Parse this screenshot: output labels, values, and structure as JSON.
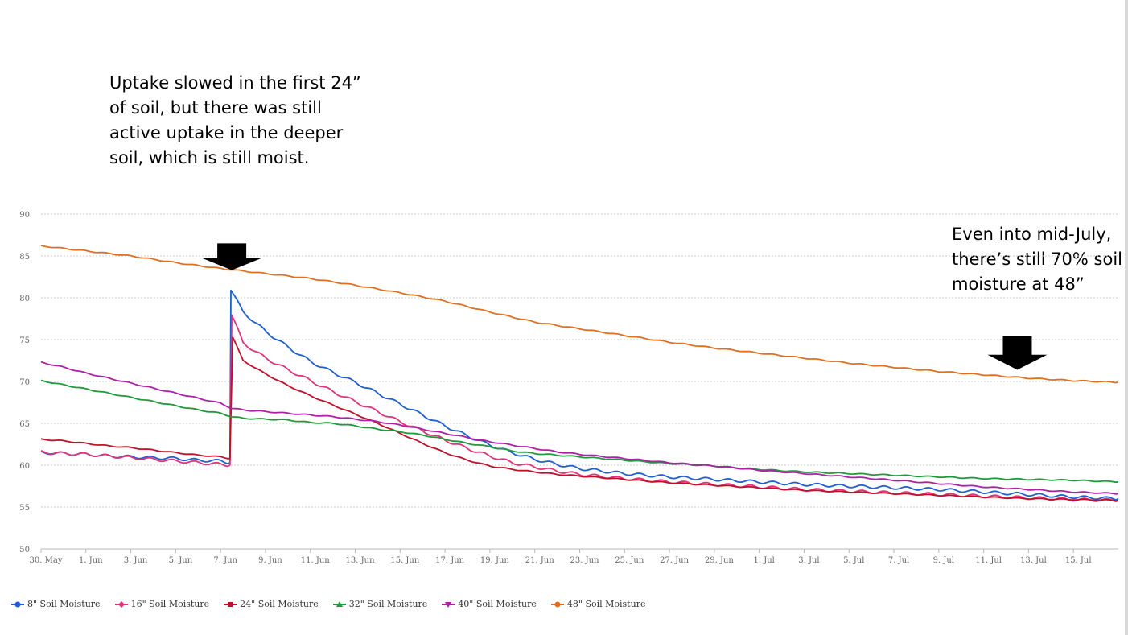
{
  "annotations": {
    "left": [
      "Uptake slowed in the first 24”",
      "of soil, but there was still",
      "active uptake in the deeper",
      "soil, which is still moist."
    ],
    "right": [
      "Even into mid-July,",
      "there’s still 70% soil",
      "moisture at 48”"
    ]
  },
  "chart_data": {
    "type": "line",
    "title": "",
    "xlabel": "",
    "ylabel": "",
    "xlim": [
      "2019-05-30",
      "2019-07-17"
    ],
    "ylim": [
      50,
      90
    ],
    "y_ticks": [
      50,
      55,
      60,
      65,
      70,
      75,
      80,
      85,
      90
    ],
    "x_tick_labels": [
      "30. May",
      "1. Jun",
      "3. Jun",
      "5. Jun",
      "7. Jun",
      "9. Jun",
      "11. Jun",
      "13. Jun",
      "15. Jun",
      "17. Jun",
      "19. Jun",
      "21. Jun",
      "23. Jun",
      "25. Jun",
      "27. Jun",
      "29. Jun",
      "1. Jul",
      "3. Jul",
      "5. Jul",
      "7. Jul",
      "9. Jul",
      "11. Jul",
      "13. Jul",
      "15. Jul"
    ],
    "grid": true,
    "legend_position": "bottom-left",
    "arrows": [
      {
        "x": "2019-06-07T12:00",
        "y_top": 86.5,
        "y_tip": 83.3
      },
      {
        "x": "2019-07-12T12:00",
        "y_top": 75.4,
        "y_tip": 71.4
      }
    ],
    "series": [
      {
        "name": "8\" Soil Moisture",
        "color": "#1f5fd0",
        "marker": "circle",
        "points": [
          [
            "2019-05-30T00:00",
            61.5
          ],
          [
            "2019-05-31T00:00",
            61.4
          ],
          [
            "2019-06-01T00:00",
            61.3
          ],
          [
            "2019-06-02T00:00",
            61.1
          ],
          [
            "2019-06-03T00:00",
            61.0
          ],
          [
            "2019-06-04T00:00",
            60.9
          ],
          [
            "2019-06-05T00:00",
            60.8
          ],
          [
            "2019-06-06T00:00",
            60.6
          ],
          [
            "2019-06-07T00:00",
            60.5
          ],
          [
            "2019-06-07T10:00",
            60.3
          ],
          [
            "2019-06-07T11:00",
            81.0
          ],
          [
            "2019-06-08T00:00",
            78.3
          ],
          [
            "2019-06-09T00:00",
            76.0
          ],
          [
            "2019-06-10T00:00",
            74.1
          ],
          [
            "2019-06-11T00:00",
            72.4
          ],
          [
            "2019-06-12T00:00",
            71.1
          ],
          [
            "2019-06-13T00:00",
            69.9
          ],
          [
            "2019-06-14T00:00",
            68.6
          ],
          [
            "2019-06-15T00:00",
            67.3
          ],
          [
            "2019-06-16T00:00",
            66.0
          ],
          [
            "2019-06-17T00:00",
            64.7
          ],
          [
            "2019-06-18T00:00",
            63.5
          ],
          [
            "2019-06-19T00:00",
            62.4
          ],
          [
            "2019-06-20T00:00",
            61.5
          ],
          [
            "2019-06-21T00:00",
            60.7
          ],
          [
            "2019-06-22T00:00",
            60.1
          ],
          [
            "2019-06-23T00:00",
            59.6
          ],
          [
            "2019-06-25T00:00",
            59.0
          ],
          [
            "2019-06-27T00:00",
            58.6
          ],
          [
            "2019-06-29T00:00",
            58.3
          ],
          [
            "2019-07-01T00:00",
            58.0
          ],
          [
            "2019-07-03T00:00",
            57.7
          ],
          [
            "2019-07-05T00:00",
            57.5
          ],
          [
            "2019-07-07T00:00",
            57.3
          ],
          [
            "2019-07-09T00:00",
            57.1
          ],
          [
            "2019-07-11T00:00",
            56.8
          ],
          [
            "2019-07-13T00:00",
            56.5
          ],
          [
            "2019-07-15T00:00",
            56.2
          ],
          [
            "2019-07-17T00:00",
            56.0
          ]
        ]
      },
      {
        "name": "16\" Soil Moisture",
        "color": "#e0337a",
        "marker": "diamond",
        "points": [
          [
            "2019-05-30T00:00",
            61.6
          ],
          [
            "2019-05-31T00:00",
            61.4
          ],
          [
            "2019-06-01T00:00",
            61.3
          ],
          [
            "2019-06-02T00:00",
            61.1
          ],
          [
            "2019-06-03T00:00",
            60.9
          ],
          [
            "2019-06-04T00:00",
            60.7
          ],
          [
            "2019-06-05T00:00",
            60.5
          ],
          [
            "2019-06-06T00:00",
            60.3
          ],
          [
            "2019-06-07T00:00",
            60.1
          ],
          [
            "2019-06-07T10:00",
            60.0
          ],
          [
            "2019-06-07T12:00",
            78.0
          ],
          [
            "2019-06-08T00:00",
            74.6
          ],
          [
            "2019-06-09T00:00",
            72.8
          ],
          [
            "2019-06-10T00:00",
            71.4
          ],
          [
            "2019-06-11T00:00",
            70.1
          ],
          [
            "2019-06-12T00:00",
            68.8
          ],
          [
            "2019-06-13T00:00",
            67.6
          ],
          [
            "2019-06-14T00:00",
            66.4
          ],
          [
            "2019-06-15T00:00",
            65.2
          ],
          [
            "2019-06-16T00:00",
            64.1
          ],
          [
            "2019-06-17T00:00",
            63.0
          ],
          [
            "2019-06-18T00:00",
            62.0
          ],
          [
            "2019-06-19T00:00",
            61.1
          ],
          [
            "2019-06-20T00:00",
            60.3
          ],
          [
            "2019-06-21T00:00",
            59.8
          ],
          [
            "2019-06-22T00:00",
            59.3
          ],
          [
            "2019-06-23T00:00",
            58.9
          ],
          [
            "2019-06-25T00:00",
            58.4
          ],
          [
            "2019-06-27T00:00",
            58.0
          ],
          [
            "2019-06-29T00:00",
            57.7
          ],
          [
            "2019-07-01T00:00",
            57.4
          ],
          [
            "2019-07-03T00:00",
            57.1
          ],
          [
            "2019-07-05T00:00",
            56.9
          ],
          [
            "2019-07-07T00:00",
            56.7
          ],
          [
            "2019-07-09T00:00",
            56.5
          ],
          [
            "2019-07-11T00:00",
            56.3
          ],
          [
            "2019-07-13T00:00",
            56.1
          ],
          [
            "2019-07-15T00:00",
            55.9
          ],
          [
            "2019-07-17T00:00",
            55.8
          ]
        ]
      },
      {
        "name": "24\" Soil Moisture",
        "color": "#c0102a",
        "marker": "square",
        "points": [
          [
            "2019-05-30T00:00",
            63.1
          ],
          [
            "2019-05-31T00:00",
            62.9
          ],
          [
            "2019-06-01T00:00",
            62.6
          ],
          [
            "2019-06-02T00:00",
            62.3
          ],
          [
            "2019-06-03T00:00",
            62.1
          ],
          [
            "2019-06-04T00:00",
            61.8
          ],
          [
            "2019-06-05T00:00",
            61.5
          ],
          [
            "2019-06-06T00:00",
            61.2
          ],
          [
            "2019-06-07T00:00",
            61.0
          ],
          [
            "2019-06-07T10:00",
            60.8
          ],
          [
            "2019-06-07T13:00",
            75.3
          ],
          [
            "2019-06-08T00:00",
            72.5
          ],
          [
            "2019-06-09T00:00",
            70.9
          ],
          [
            "2019-06-10T00:00",
            69.5
          ],
          [
            "2019-06-11T00:00",
            68.3
          ],
          [
            "2019-06-12T00:00",
            67.2
          ],
          [
            "2019-06-13T00:00",
            66.1
          ],
          [
            "2019-06-14T00:00",
            65.0
          ],
          [
            "2019-06-15T00:00",
            63.8
          ],
          [
            "2019-06-16T00:00",
            62.6
          ],
          [
            "2019-06-17T00:00",
            61.5
          ],
          [
            "2019-06-18T00:00",
            60.6
          ],
          [
            "2019-06-19T00:00",
            59.9
          ],
          [
            "2019-06-20T00:00",
            59.5
          ],
          [
            "2019-06-21T00:00",
            59.2
          ],
          [
            "2019-06-22T00:00",
            58.9
          ],
          [
            "2019-06-23T00:00",
            58.7
          ],
          [
            "2019-06-25T00:00",
            58.3
          ],
          [
            "2019-06-27T00:00",
            57.9
          ],
          [
            "2019-06-29T00:00",
            57.6
          ],
          [
            "2019-07-01T00:00",
            57.3
          ],
          [
            "2019-07-03T00:00",
            57.0
          ],
          [
            "2019-07-05T00:00",
            56.8
          ],
          [
            "2019-07-07T00:00",
            56.6
          ],
          [
            "2019-07-09T00:00",
            56.4
          ],
          [
            "2019-07-11T00:00",
            56.2
          ],
          [
            "2019-07-13T00:00",
            56.0
          ],
          [
            "2019-07-15T00:00",
            55.9
          ],
          [
            "2019-07-17T00:00",
            55.8
          ]
        ]
      },
      {
        "name": "32\" Soil Moisture",
        "color": "#1e9a3a",
        "marker": "triangle",
        "points": [
          [
            "2019-05-30T00:00",
            70.1
          ],
          [
            "2019-05-31T00:00",
            69.6
          ],
          [
            "2019-06-01T00:00",
            69.1
          ],
          [
            "2019-06-02T00:00",
            68.6
          ],
          [
            "2019-06-03T00:00",
            68.1
          ],
          [
            "2019-06-04T00:00",
            67.6
          ],
          [
            "2019-06-05T00:00",
            67.1
          ],
          [
            "2019-06-06T00:00",
            66.6
          ],
          [
            "2019-06-07T00:00",
            66.2
          ],
          [
            "2019-06-07T12:00",
            65.8
          ],
          [
            "2019-06-08T00:00",
            65.6
          ],
          [
            "2019-06-09T00:00",
            65.5
          ],
          [
            "2019-06-10T00:00",
            65.4
          ],
          [
            "2019-06-11T00:00",
            65.1
          ],
          [
            "2019-06-12T00:00",
            65.0
          ],
          [
            "2019-06-13T00:00",
            64.7
          ],
          [
            "2019-06-14T00:00",
            64.3
          ],
          [
            "2019-06-15T00:00",
            64.0
          ],
          [
            "2019-06-16T00:00",
            63.6
          ],
          [
            "2019-06-17T00:00",
            63.1
          ],
          [
            "2019-06-18T00:00",
            62.6
          ],
          [
            "2019-06-19T00:00",
            62.2
          ],
          [
            "2019-06-20T00:00",
            61.7
          ],
          [
            "2019-06-21T00:00",
            61.4
          ],
          [
            "2019-06-22T00:00",
            61.2
          ],
          [
            "2019-06-23T00:00",
            61.0
          ],
          [
            "2019-06-25T00:00",
            60.6
          ],
          [
            "2019-06-27T00:00",
            60.2
          ],
          [
            "2019-06-29T00:00",
            59.9
          ],
          [
            "2019-07-01T00:00",
            59.5
          ],
          [
            "2019-07-03T00:00",
            59.2
          ],
          [
            "2019-07-05T00:00",
            59.0
          ],
          [
            "2019-07-07T00:00",
            58.8
          ],
          [
            "2019-07-09T00:00",
            58.6
          ],
          [
            "2019-07-11T00:00",
            58.4
          ],
          [
            "2019-07-13T00:00",
            58.3
          ],
          [
            "2019-07-15T00:00",
            58.2
          ],
          [
            "2019-07-17T00:00",
            58.0
          ]
        ]
      },
      {
        "name": "40\" Soil Moisture",
        "color": "#b01fa8",
        "marker": "triangle-down",
        "points": [
          [
            "2019-05-30T00:00",
            72.3
          ],
          [
            "2019-05-31T00:00",
            71.7
          ],
          [
            "2019-06-01T00:00",
            71.0
          ],
          [
            "2019-06-02T00:00",
            70.4
          ],
          [
            "2019-06-03T00:00",
            69.8
          ],
          [
            "2019-06-04T00:00",
            69.2
          ],
          [
            "2019-06-05T00:00",
            68.6
          ],
          [
            "2019-06-06T00:00",
            68.0
          ],
          [
            "2019-06-07T00:00",
            67.4
          ],
          [
            "2019-06-07T12:00",
            66.8
          ],
          [
            "2019-06-08T00:00",
            66.6
          ],
          [
            "2019-06-09T00:00",
            66.4
          ],
          [
            "2019-06-10T00:00",
            66.2
          ],
          [
            "2019-06-11T00:00",
            66.0
          ],
          [
            "2019-06-12T00:00",
            65.8
          ],
          [
            "2019-06-13T00:00",
            65.5
          ],
          [
            "2019-06-14T00:00",
            65.2
          ],
          [
            "2019-06-15T00:00",
            64.8
          ],
          [
            "2019-06-16T00:00",
            64.3
          ],
          [
            "2019-06-17T00:00",
            63.8
          ],
          [
            "2019-06-18T00:00",
            63.3
          ],
          [
            "2019-06-19T00:00",
            62.8
          ],
          [
            "2019-06-20T00:00",
            62.4
          ],
          [
            "2019-06-21T00:00",
            62.0
          ],
          [
            "2019-06-22T00:00",
            61.6
          ],
          [
            "2019-06-23T00:00",
            61.3
          ],
          [
            "2019-06-25T00:00",
            60.8
          ],
          [
            "2019-06-27T00:00",
            60.3
          ],
          [
            "2019-06-29T00:00",
            59.9
          ],
          [
            "2019-07-01T00:00",
            59.4
          ],
          [
            "2019-07-03T00:00",
            59.0
          ],
          [
            "2019-07-05T00:00",
            58.6
          ],
          [
            "2019-07-07T00:00",
            58.2
          ],
          [
            "2019-07-09T00:00",
            57.8
          ],
          [
            "2019-07-11T00:00",
            57.4
          ],
          [
            "2019-07-13T00:00",
            57.1
          ],
          [
            "2019-07-15T00:00",
            56.8
          ],
          [
            "2019-07-17T00:00",
            56.6
          ]
        ]
      },
      {
        "name": "48\" Soil Moisture",
        "color": "#e07020",
        "marker": "circle",
        "points": [
          [
            "2019-05-30T00:00",
            86.2
          ],
          [
            "2019-06-01T00:00",
            85.6
          ],
          [
            "2019-06-03T00:00",
            85.0
          ],
          [
            "2019-06-05T00:00",
            84.2
          ],
          [
            "2019-06-07T00:00",
            83.5
          ],
          [
            "2019-06-09T00:00",
            82.9
          ],
          [
            "2019-06-11T00:00",
            82.3
          ],
          [
            "2019-06-13T00:00",
            81.5
          ],
          [
            "2019-06-15T00:00",
            80.6
          ],
          [
            "2019-06-17T00:00",
            79.6
          ],
          [
            "2019-06-19T00:00",
            78.3
          ],
          [
            "2019-06-21T00:00",
            77.1
          ],
          [
            "2019-06-23T00:00",
            76.3
          ],
          [
            "2019-06-25T00:00",
            75.5
          ],
          [
            "2019-06-27T00:00",
            74.7
          ],
          [
            "2019-06-29T00:00",
            74.0
          ],
          [
            "2019-07-01T00:00",
            73.4
          ],
          [
            "2019-07-03T00:00",
            72.8
          ],
          [
            "2019-07-05T00:00",
            72.2
          ],
          [
            "2019-07-07T00:00",
            71.7
          ],
          [
            "2019-07-09T00:00",
            71.2
          ],
          [
            "2019-07-11T00:00",
            70.8
          ],
          [
            "2019-07-13T00:00",
            70.4
          ],
          [
            "2019-07-15T00:00",
            70.1
          ],
          [
            "2019-07-17T00:00",
            69.9
          ]
        ]
      }
    ]
  }
}
